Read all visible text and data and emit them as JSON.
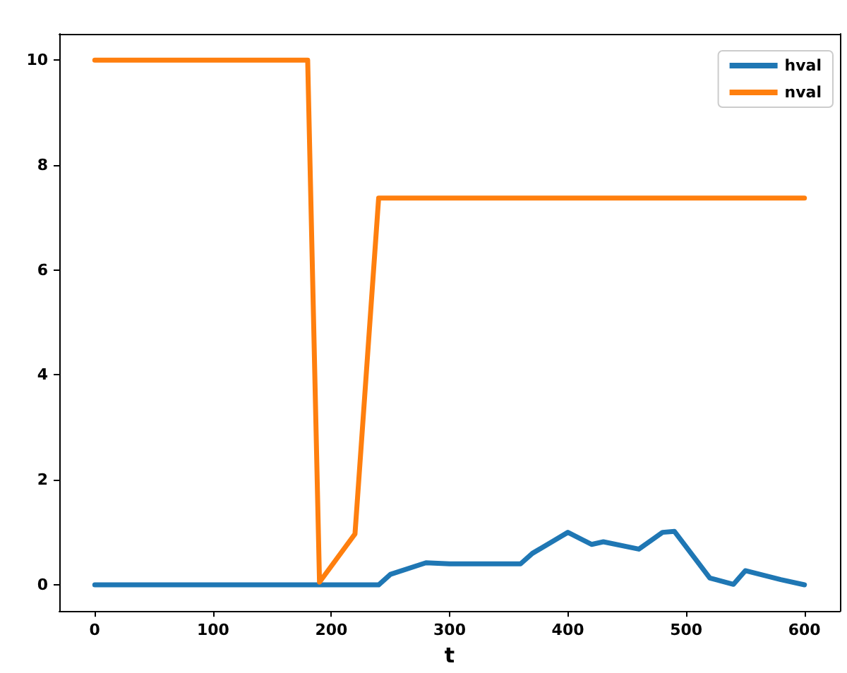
{
  "chart_data": {
    "type": "line",
    "xlabel": "t",
    "xlim": [
      -30,
      630
    ],
    "xticks": [
      0,
      100,
      200,
      300,
      400,
      500,
      600
    ],
    "ylim": [
      -0.5,
      10.5
    ],
    "yticks": [
      0,
      2,
      4,
      6,
      8,
      10
    ],
    "legend": "top right",
    "grid": false,
    "marker": "none",
    "line_style": "solid",
    "series": [
      {
        "name": "hval",
        "color": "#1f77b4",
        "x": [
          0,
          240,
          250,
          280,
          300,
          360,
          370,
          400,
          420,
          430,
          460,
          480,
          490,
          520,
          540,
          550,
          580,
          600
        ],
        "values": [
          0,
          0,
          0.2,
          0.42,
          0.4,
          0.4,
          0.6,
          1.0,
          0.77,
          0.82,
          0.68,
          1.0,
          1.02,
          0.13,
          0.01,
          0.27,
          0.1,
          0
        ]
      },
      {
        "name": "nval",
        "color": "#ff7f0e",
        "x": [
          0,
          180,
          190,
          220,
          240,
          600
        ],
        "values": [
          10,
          10,
          0.05,
          0.97,
          7.37,
          7.37
        ]
      }
    ]
  }
}
